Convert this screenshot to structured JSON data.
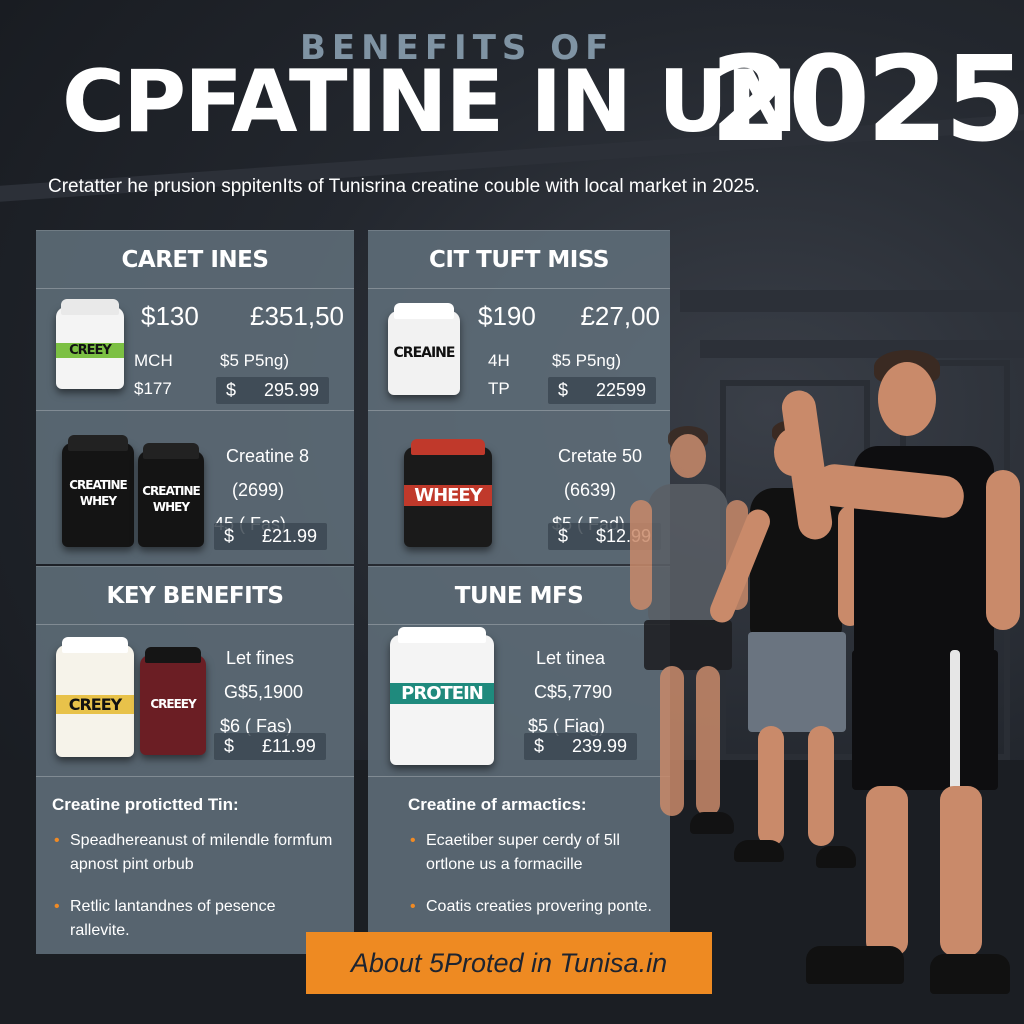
{
  "header": {
    "kicker": "BENEFITS OF",
    "title": "CPFATINE IN UN",
    "year": "2025",
    "subtitle": "Cretatter he prusion sppitenIts of Tunisrina creatine couble with local market in 2025."
  },
  "panels": [
    {
      "title": "CARET INES",
      "rows": [
        {
          "price_a": "$130",
          "price_b": "£351,50",
          "label_a": "MCH",
          "label_b": "$177",
          "weight": "$5  P5ng)",
          "currency": "$",
          "price": "295.99",
          "jar_text": [
            "CREEY"
          ]
        },
        {
          "name": "Creatine 8",
          "code": "(2699)",
          "weight": "45  ( Fas)",
          "currency": "$",
          "price": "£21.99",
          "jar_text": [
            "CREATINE WHEY",
            "CREATINE WHEY"
          ]
        }
      ]
    },
    {
      "title": "CIT TUFT MISS",
      "rows": [
        {
          "price_a": "$190",
          "price_b": "£27,00",
          "label_a": "4H",
          "label_b": "TP",
          "weight": "$5  P5ng)",
          "currency": "$",
          "price": "22599",
          "jar_text": [
            "CREAINE"
          ]
        },
        {
          "name": "Cretate 50",
          "code": "(6639)",
          "weight": "$5  ( Fad)",
          "currency": "$",
          "price": "$12.99",
          "jar_text": [
            "WHEEY"
          ]
        }
      ]
    },
    {
      "title": "KEY BENEFITS",
      "rows": [
        {
          "name": "Let fines",
          "code": "G$5,1900",
          "weight": "$6  ( Fas)",
          "currency": "$",
          "price": "£11.99",
          "jar_text": [
            "CREEY",
            "CREEEY"
          ]
        }
      ],
      "notes_heading": "Creatine protictted Tin:",
      "notes": [
        "Speadhereanust of milendle formfum apnost pint orbub",
        "Retlic lantandnes of pesence rallevite."
      ]
    },
    {
      "title": "TUNE MFS",
      "rows": [
        {
          "name": "Let tinea",
          "code": "C$5,7790",
          "weight": "$5  ( Fiag)",
          "currency": "$",
          "price": "239.99",
          "jar_text": [
            "PROTEIN"
          ]
        }
      ],
      "notes_heading": "Creatine of armactics:",
      "notes": [
        "Ecaetiber super cerdy of 5ll ortlone us a formacille",
        "Coatis creaties provering ponte."
      ]
    }
  ],
  "cta": {
    "label": "About 5Proted in Tunisa.in"
  },
  "colors": {
    "panel": "#606e7a",
    "accent": "#ee8a22",
    "background": "#23272e"
  },
  "icons": [
    "supplement-jar-icon",
    "athlete-figure"
  ]
}
